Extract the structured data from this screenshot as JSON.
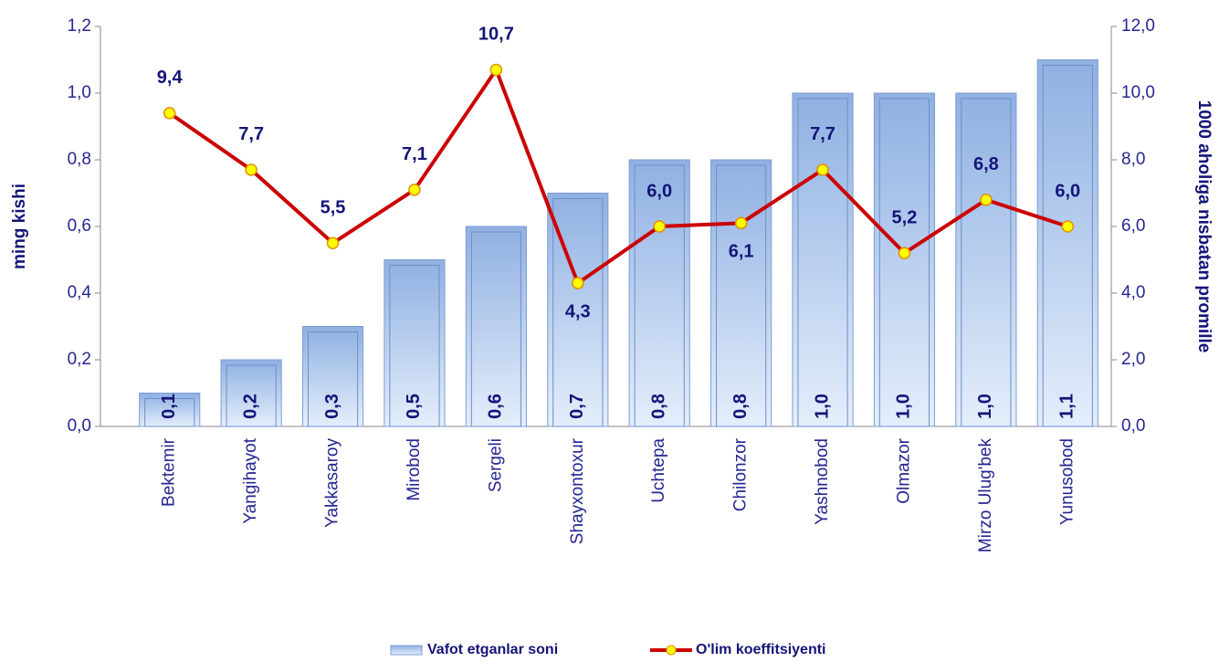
{
  "chart_data": {
    "type": "bar-line",
    "y_label": "ming  kishi",
    "y2_label": "1000 aholiga nisbatan promille",
    "categories": [
      "Bektemir",
      "Yangihayot",
      "Yakkasaroy",
      "Mirobod",
      "Sergeli",
      "Shayxontoxur",
      "Uchtepa",
      "Chilonzor",
      "Yashnobod",
      "Olmazor",
      "Mirzo Ulug'bek",
      "Yunusobod"
    ],
    "series": [
      {
        "name": "Vafot etganlar soni",
        "type": "bar",
        "color": "#9dbbe6",
        "values": [
          0.1,
          0.2,
          0.3,
          0.5,
          0.6,
          0.7,
          0.8,
          0.8,
          1.0,
          1.0,
          1.0,
          1.1
        ],
        "value_labels": [
          "0,1",
          "0,2",
          "0,3",
          "0,5",
          "0,6",
          "0,7",
          "0,8",
          "0,8",
          "1,0",
          "1,0",
          "1,0",
          "1,1"
        ]
      },
      {
        "name": "O'lim koeffitsiyenti",
        "type": "line",
        "axis": "y2",
        "color": "#cc0000",
        "values": [
          9.4,
          7.7,
          5.5,
          7.1,
          10.7,
          4.3,
          6.0,
          6.1,
          7.7,
          5.2,
          6.8,
          6.0
        ],
        "value_labels": [
          "9,4",
          "7,7",
          "5,5",
          "7,1",
          "10,7",
          "4,3",
          "6,0",
          "6,1",
          "7,7",
          "5,2",
          "6,8",
          "6,0"
        ]
      }
    ],
    "ylim": [
      0,
      1.2
    ],
    "yticks": [
      {
        "value": 0,
        "label": "0,0"
      },
      {
        "value": 0.2,
        "label": "0,2"
      },
      {
        "value": 0.4,
        "label": "0,4"
      },
      {
        "value": 0.6,
        "label": "0,6"
      },
      {
        "value": 0.8,
        "label": "0,8"
      },
      {
        "value": 1.0,
        "label": "1,0"
      },
      {
        "value": 1.2,
        "label": "1,2"
      }
    ],
    "y2lim": [
      0,
      12
    ],
    "y2ticks": [
      {
        "value": 0,
        "label": "0,0"
      },
      {
        "value": 2,
        "label": "2,0"
      },
      {
        "value": 4,
        "label": "4,0"
      },
      {
        "value": 6,
        "label": "6,0"
      },
      {
        "value": 8,
        "label": "8,0"
      },
      {
        "value": 10,
        "label": "10,0"
      },
      {
        "value": 12,
        "label": "12,0"
      }
    ],
    "legend": "bottom"
  }
}
